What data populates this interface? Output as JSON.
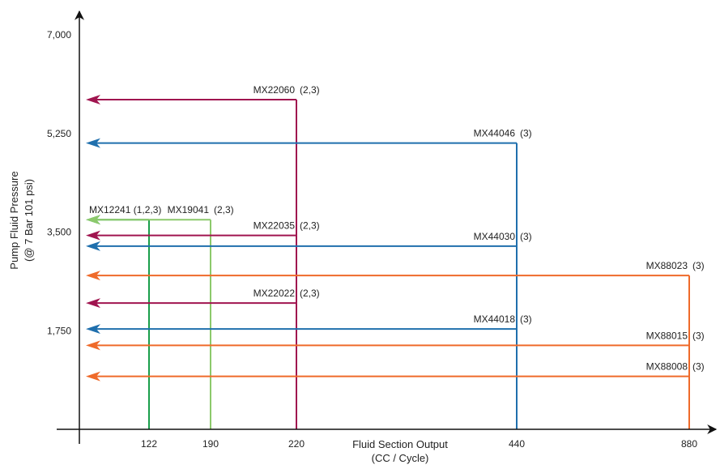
{
  "chart_data": {
    "type": "line",
    "title": "",
    "xlabel": "Fluid Section Output",
    "xlabel_sub": "(CC / Cycle)",
    "ylabel": "Pump Fluid Pressure",
    "ylabel_sub": "(@ 7 Bar 101 psi)",
    "x_ticks": [
      "122",
      "190",
      "220",
      "440",
      "880"
    ],
    "y_ticks": [
      "1,750",
      "3,500",
      "5,250",
      "7,000"
    ],
    "ylim": [
      0,
      7000
    ],
    "grid": false,
    "legend": "none",
    "series": [
      {
        "name": "MX22060",
        "suffix": "(2,3)",
        "x": "220",
        "pressure": 5850,
        "color": "#a0144f"
      },
      {
        "name": "MX44046",
        "suffix": "(3)",
        "x": "440",
        "pressure": 5080,
        "color": "#1f6fad"
      },
      {
        "name": "MX12241 (1,2,3)",
        "suffix": "",
        "x": "122",
        "pressure": 3720,
        "color": "#1a9e4b"
      },
      {
        "name": "MX19041",
        "suffix": "(2,3)",
        "x": "190",
        "pressure": 3720,
        "color": "#8cc96b"
      },
      {
        "name": "MX22035",
        "suffix": "(2,3)",
        "x": "220",
        "pressure": 3440,
        "color": "#a0144f"
      },
      {
        "name": "MX44030",
        "suffix": "(3)",
        "x": "440",
        "pressure": 3250,
        "color": "#1f6fad"
      },
      {
        "name": "MX88023",
        "suffix": "(3)",
        "x": "880",
        "pressure": 2730,
        "color": "#ef6a2a"
      },
      {
        "name": "MX22022",
        "suffix": "(2,3)",
        "x": "220",
        "pressure": 2240,
        "color": "#a0144f"
      },
      {
        "name": "MX44018",
        "suffix": "(3)",
        "x": "440",
        "pressure": 1780,
        "color": "#1f6fad"
      },
      {
        "name": "MX88015",
        "suffix": "(3)",
        "x": "880",
        "pressure": 1490,
        "color": "#ef6a2a"
      },
      {
        "name": "MX88008",
        "suffix": "(3)",
        "x": "880",
        "pressure": 940,
        "color": "#ef6a2a"
      }
    ]
  }
}
